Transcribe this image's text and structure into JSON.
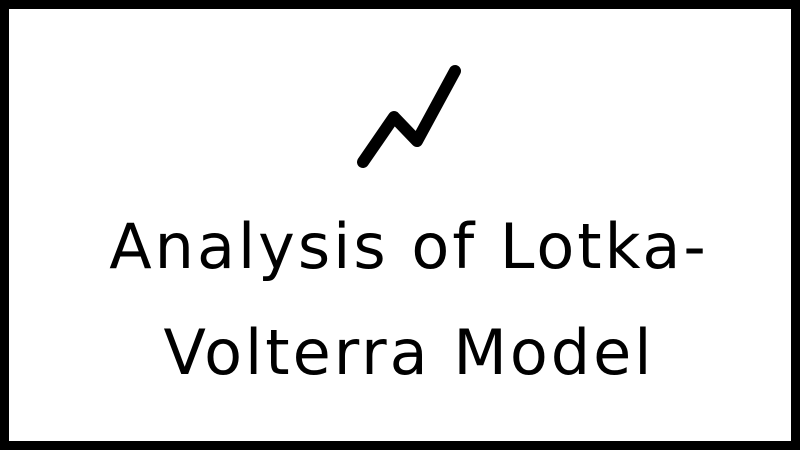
{
  "title": {
    "line1": "Analysis of Lotka-",
    "line2": "Volterra Model"
  },
  "logo": {
    "icon": "zigzag-lightning-icon",
    "color": "#000000"
  },
  "colors": {
    "border": "#000000",
    "background": "#ffffff",
    "text": "#000000"
  }
}
